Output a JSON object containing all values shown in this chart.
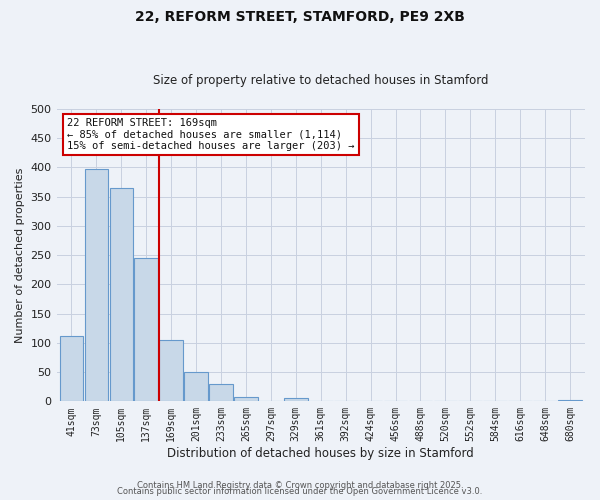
{
  "title": "22, REFORM STREET, STAMFORD, PE9 2XB",
  "subtitle": "Size of property relative to detached houses in Stamford",
  "xlabel": "Distribution of detached houses by size in Stamford",
  "ylabel": "Number of detached properties",
  "bar_labels": [
    "41sqm",
    "73sqm",
    "105sqm",
    "137sqm",
    "169sqm",
    "201sqm",
    "233sqm",
    "265sqm",
    "297sqm",
    "329sqm",
    "361sqm",
    "392sqm",
    "424sqm",
    "456sqm",
    "488sqm",
    "520sqm",
    "552sqm",
    "584sqm",
    "616sqm",
    "648sqm",
    "680sqm"
  ],
  "bar_values": [
    112,
    398,
    365,
    246,
    105,
    50,
    30,
    8,
    0,
    5,
    0,
    0,
    0,
    0,
    0,
    0,
    0,
    0,
    0,
    0,
    2
  ],
  "bar_color": "#c8d8e8",
  "bar_edge_color": "#6699cc",
  "vline_color": "#cc0000",
  "vline_bar_index": 4,
  "annotation_title": "22 REFORM STREET: 169sqm",
  "annotation_line1": "← 85% of detached houses are smaller (1,114)",
  "annotation_line2": "15% of semi-detached houses are larger (203) →",
  "ylim": [
    0,
    500
  ],
  "yticks": [
    0,
    50,
    100,
    150,
    200,
    250,
    300,
    350,
    400,
    450,
    500
  ],
  "footnote1": "Contains HM Land Registry data © Crown copyright and database right 2025.",
  "footnote2": "Contains public sector information licensed under the Open Government Licence v3.0.",
  "background_color": "#eef2f8",
  "grid_color": "#c8d0e0"
}
